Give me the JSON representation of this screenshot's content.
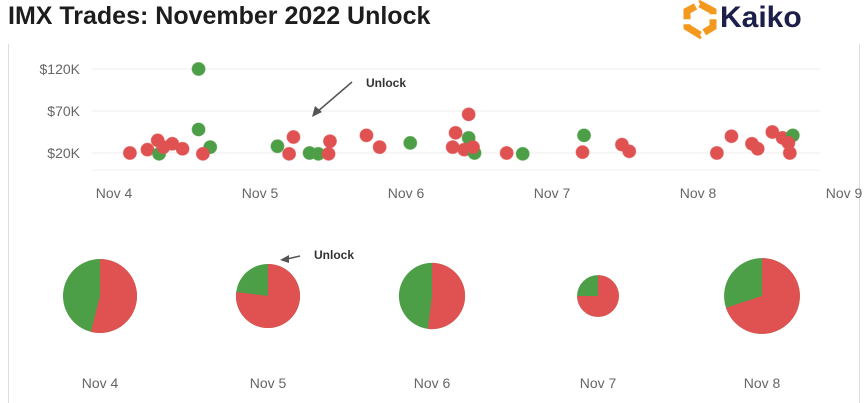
{
  "title": "IMX Trades: November 2022 Unlock",
  "logo": {
    "text": "Kaiko",
    "brand_color": "#f39a1e",
    "text_color": "#1b1f4a"
  },
  "colors": {
    "red": "#e05252",
    "green": "#4c9e47"
  },
  "chart_data": [
    {
      "type": "scatter",
      "title": "",
      "ylabel": "",
      "xlabel": "",
      "x_ticks": [
        "Nov 4",
        "Nov 5",
        "Nov 6",
        "Nov 7",
        "Nov 8",
        "Nov 9"
      ],
      "x_range": [
        "2022-11-04T00:00",
        "2022-11-09T00:00"
      ],
      "y_ticks": [
        {
          "value": 20000,
          "label": "$20K"
        },
        {
          "value": 70000,
          "label": "$70K"
        },
        {
          "value": 120000,
          "label": "$120K"
        }
      ],
      "ylim": [
        0,
        130000
      ],
      "grid": true,
      "annotation": {
        "text": "Unlock",
        "x": "2022-11-05T15:00"
      },
      "points": [
        {
          "x": "2022-11-04T06:14",
          "y": 20000,
          "c": "red"
        },
        {
          "x": "2022-11-04T09:07",
          "y": 24000,
          "c": "red"
        },
        {
          "x": "2022-11-04T11:02",
          "y": 19000,
          "c": "green"
        },
        {
          "x": "2022-11-04T10:48",
          "y": 35000,
          "c": "red"
        },
        {
          "x": "2022-11-04T11:45",
          "y": 27000,
          "c": "red"
        },
        {
          "x": "2022-11-04T13:12",
          "y": 31000,
          "c": "red"
        },
        {
          "x": "2022-11-04T14:53",
          "y": 25000,
          "c": "red"
        },
        {
          "x": "2022-11-04T17:31",
          "y": 120000,
          "c": "green"
        },
        {
          "x": "2022-11-04T17:31",
          "y": 48000,
          "c": "green"
        },
        {
          "x": "2022-11-04T19:26",
          "y": 27000,
          "c": "green"
        },
        {
          "x": "2022-11-04T18:14",
          "y": 19000,
          "c": "red"
        },
        {
          "x": "2022-11-05T06:29",
          "y": 28000,
          "c": "green"
        },
        {
          "x": "2022-11-05T09:07",
          "y": 39000,
          "c": "red"
        },
        {
          "x": "2022-11-05T08:24",
          "y": 19000,
          "c": "red"
        },
        {
          "x": "2022-11-05T11:46",
          "y": 20000,
          "c": "green"
        },
        {
          "x": "2022-11-05T13:12",
          "y": 19000,
          "c": "green"
        },
        {
          "x": "2022-11-05T14:53",
          "y": 19000,
          "c": "red"
        },
        {
          "x": "2022-11-05T15:07",
          "y": 34000,
          "c": "red"
        },
        {
          "x": "2022-11-05T21:07",
          "y": 41000,
          "c": "red"
        },
        {
          "x": "2022-11-05T23:17",
          "y": 27000,
          "c": "red"
        },
        {
          "x": "2022-11-06T04:19",
          "y": 32000,
          "c": "green"
        },
        {
          "x": "2022-11-06T13:55",
          "y": 66000,
          "c": "red"
        },
        {
          "x": "2022-11-06T11:46",
          "y": 44000,
          "c": "red"
        },
        {
          "x": "2022-11-06T13:55",
          "y": 38000,
          "c": "green"
        },
        {
          "x": "2022-11-06T11:17",
          "y": 27000,
          "c": "red"
        },
        {
          "x": "2022-11-06T13:12",
          "y": 24000,
          "c": "red"
        },
        {
          "x": "2022-11-06T14:53",
          "y": 20000,
          "c": "green"
        },
        {
          "x": "2022-11-06T14:38",
          "y": 27000,
          "c": "red"
        },
        {
          "x": "2022-11-06T20:10",
          "y": 20000,
          "c": "red"
        },
        {
          "x": "2022-11-06T22:48",
          "y": 19000,
          "c": "green"
        },
        {
          "x": "2022-11-07T08:53",
          "y": 41000,
          "c": "green"
        },
        {
          "x": "2022-11-07T08:38",
          "y": 21000,
          "c": "red"
        },
        {
          "x": "2022-11-07T15:07",
          "y": 30000,
          "c": "red"
        },
        {
          "x": "2022-11-07T16:19",
          "y": 22000,
          "c": "red"
        },
        {
          "x": "2022-11-08T06:43",
          "y": 20000,
          "c": "red"
        },
        {
          "x": "2022-11-08T09:07",
          "y": 40000,
          "c": "red"
        },
        {
          "x": "2022-11-08T12:29",
          "y": 31000,
          "c": "red"
        },
        {
          "x": "2022-11-08T13:26",
          "y": 25000,
          "c": "red"
        },
        {
          "x": "2022-11-08T15:50",
          "y": 45000,
          "c": "red"
        },
        {
          "x": "2022-11-08T17:31",
          "y": 38000,
          "c": "red"
        },
        {
          "x": "2022-11-08T19:12",
          "y": 41000,
          "c": "green"
        },
        {
          "x": "2022-11-08T18:29",
          "y": 32000,
          "c": "red"
        },
        {
          "x": "2022-11-08T18:43",
          "y": 20000,
          "c": "red"
        }
      ]
    },
    {
      "type": "pie",
      "annotation": {
        "text": "Unlock",
        "target": "Nov 5"
      },
      "pies": [
        {
          "label": "Nov 4",
          "green_share": 0.46,
          "relative_size": 1.0
        },
        {
          "label": "Nov 5",
          "green_share": 0.23,
          "relative_size": 0.75
        },
        {
          "label": "Nov 6",
          "green_share": 0.48,
          "relative_size": 0.8
        },
        {
          "label": "Nov 7",
          "green_share": 0.25,
          "relative_size": 0.32
        },
        {
          "label": "Nov 8",
          "green_share": 0.3,
          "relative_size": 1.05
        }
      ]
    }
  ]
}
